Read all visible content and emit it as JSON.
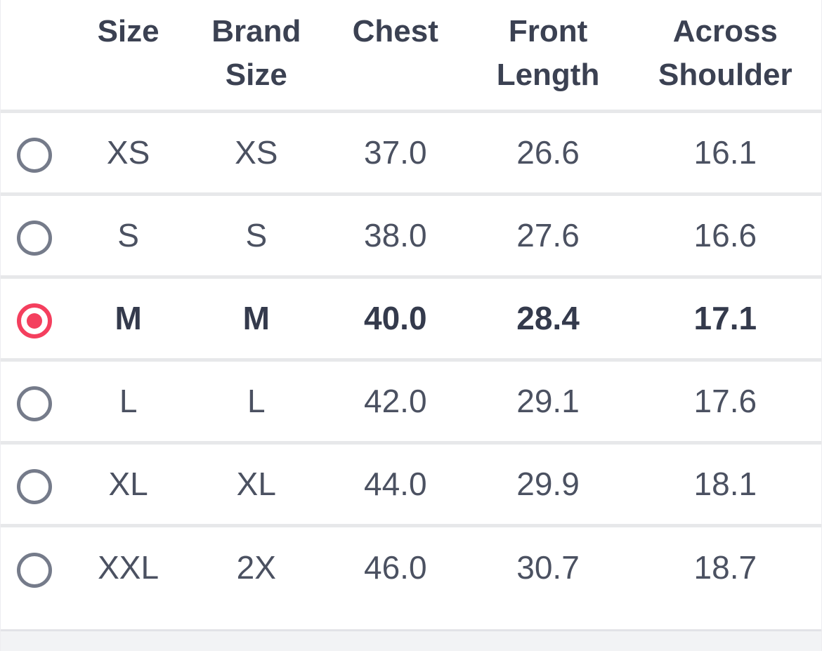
{
  "colors": {
    "accent_pink": "#f43f5e",
    "radio_gray": "#757b8a",
    "header_text": "#3b4152",
    "body_text": "#4b5161",
    "separator": "#e7e8ea",
    "footer_bg": "#f2f3f5"
  },
  "size_chart": {
    "columns": [
      {
        "line1": "",
        "line2": ""
      },
      {
        "line1": "Size",
        "line2": ""
      },
      {
        "line1": "Brand",
        "line2": "Size"
      },
      {
        "line1": "Chest",
        "line2": ""
      },
      {
        "line1": "Front",
        "line2": "Length"
      },
      {
        "line1": "Across",
        "line2": "Shoulder"
      }
    ],
    "rows": [
      {
        "size": "XS",
        "brand_size": "XS",
        "chest": "37.0",
        "front_length": "26.6",
        "across_shoulder": "16.1",
        "selected": false
      },
      {
        "size": "S",
        "brand_size": "S",
        "chest": "38.0",
        "front_length": "27.6",
        "across_shoulder": "16.6",
        "selected": false
      },
      {
        "size": "M",
        "brand_size": "M",
        "chest": "40.0",
        "front_length": "28.4",
        "across_shoulder": "17.1",
        "selected": true
      },
      {
        "size": "L",
        "brand_size": "L",
        "chest": "42.0",
        "front_length": "29.1",
        "across_shoulder": "17.6",
        "selected": false
      },
      {
        "size": "XL",
        "brand_size": "XL",
        "chest": "44.0",
        "front_length": "29.9",
        "across_shoulder": "18.1",
        "selected": false
      },
      {
        "size": "XXL",
        "brand_size": "2X",
        "chest": "46.0",
        "front_length": "30.7",
        "across_shoulder": "18.7",
        "selected": false
      }
    ],
    "selected_size": "M"
  }
}
